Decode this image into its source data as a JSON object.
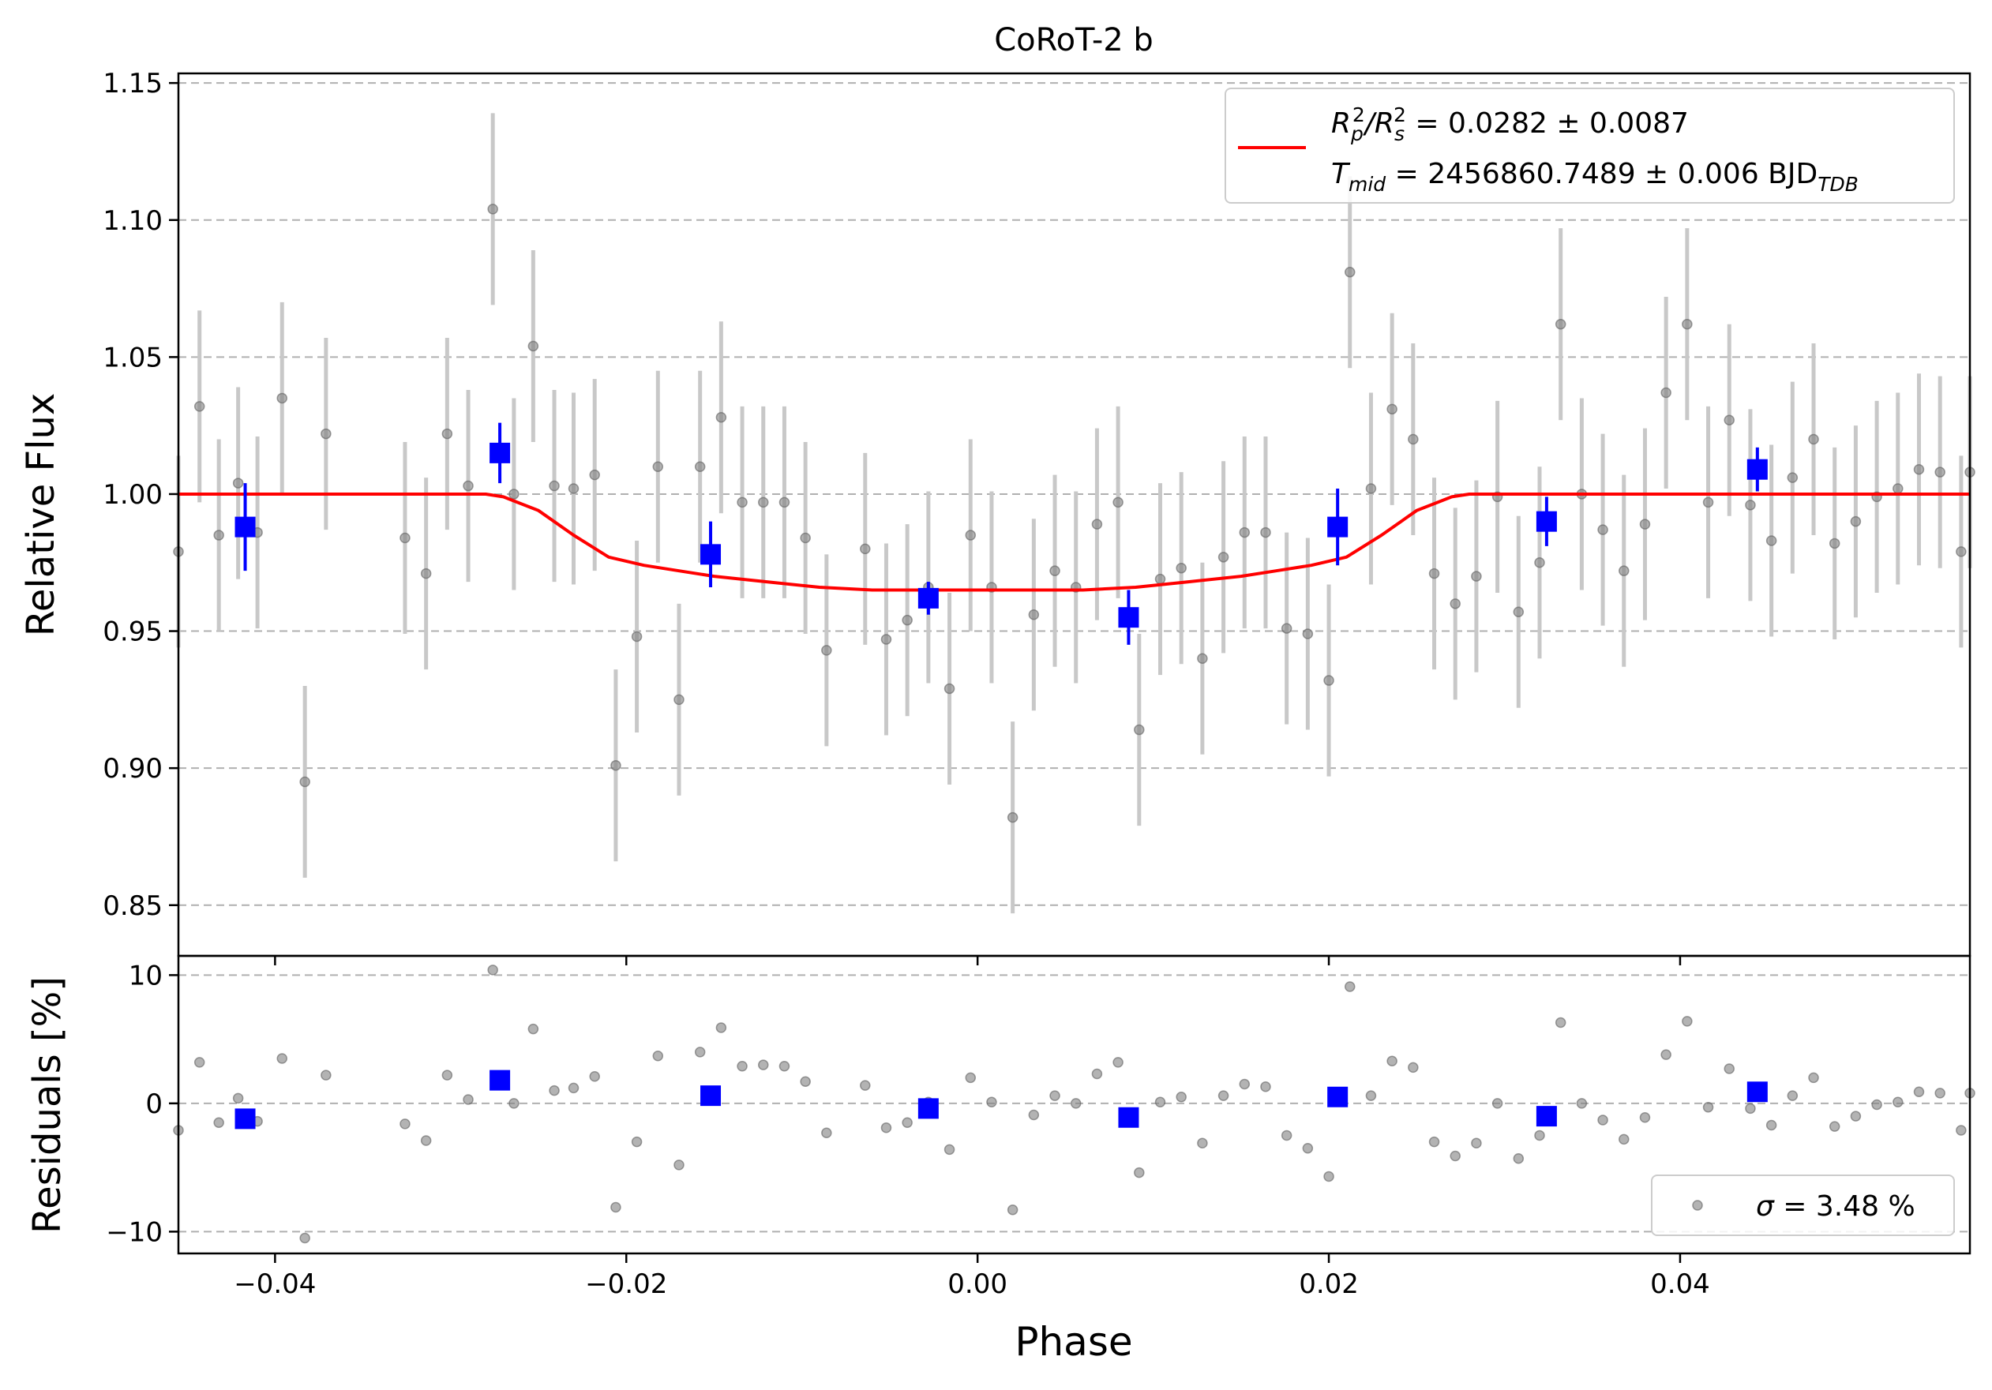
{
  "chart_data": [
    {
      "type": "scatter",
      "title": "CoRoT-2 b",
      "xlabel": "Phase",
      "ylabel": "Relative Flux",
      "xlim": [
        -0.0455,
        0.0565
      ],
      "ylim": [
        0.8315,
        1.1535
      ],
      "grid": "y-dashed",
      "x_ticks": [
        -0.04,
        -0.02,
        0.0,
        0.02,
        0.04
      ],
      "x_tick_labels": [
        "−0.04",
        "−0.02",
        "0.00",
        "0.02",
        "0.04"
      ],
      "y_ticks": [
        0.85,
        0.9,
        0.95,
        1.0,
        1.05,
        1.1,
        1.15
      ],
      "y_tick_labels": [
        "0.85",
        "0.90",
        "0.95",
        "1.00",
        "1.05",
        "1.10",
        "1.15"
      ],
      "legend": {
        "placement": "top-right",
        "line1_main": "R",
        "line1_sub_p": "p",
        "line1_sup_2a": "2",
        "line1_slash": "/R",
        "line1_sub_s": "s",
        "line1_sup_2b": "2",
        "line1_value": " = 0.0282 ± 0.0087",
        "line2_main": "T",
        "line2_sub": "mid",
        "line2_value": " = 2456860.7489 ± 0.006 BJD",
        "line2_unit_sub": "TDB"
      },
      "raw_points": {
        "x": [
          -0.0455,
          -0.0443,
          -0.0432,
          -0.0421,
          -0.041,
          -0.0396,
          -0.0383,
          -0.0371,
          -0.0326,
          -0.0314,
          -0.0302,
          -0.029,
          -0.0276,
          -0.0264,
          -0.0253,
          -0.0241,
          -0.023,
          -0.0218,
          -0.0206,
          -0.0194,
          -0.0182,
          -0.017,
          -0.0158,
          -0.0146,
          -0.0134,
          -0.0122,
          -0.011,
          -0.0098,
          -0.0086,
          -0.0064,
          -0.0052,
          -0.004,
          -0.0028,
          -0.0016,
          -0.0004,
          0.0008,
          0.002,
          0.0032,
          0.0044,
          0.0056,
          0.0068,
          0.008,
          0.0092,
          0.0104,
          0.0116,
          0.0128,
          0.014,
          0.0152,
          0.0164,
          0.0176,
          0.0188,
          0.02,
          0.0212,
          0.0224,
          0.0236,
          0.0248,
          0.026,
          0.0272,
          0.0284,
          0.0296,
          0.0308,
          0.032,
          0.0332,
          0.0344,
          0.0356,
          0.0368,
          0.038,
          0.0392,
          0.0404,
          0.0416,
          0.0428,
          0.044,
          0.0452,
          0.0464,
          0.0476,
          0.0488,
          0.05,
          0.0512,
          0.0524,
          0.0536,
          0.0548,
          0.056,
          0.0565
        ],
        "y": [
          0.979,
          1.032,
          0.985,
          1.004,
          0.986,
          1.035,
          0.895,
          1.022,
          0.984,
          0.971,
          1.022,
          1.003,
          1.104,
          1.0,
          1.054,
          1.003,
          1.002,
          1.007,
          0.901,
          0.948,
          1.01,
          0.925,
          1.01,
          1.028,
          0.997,
          0.997,
          0.997,
          0.984,
          0.943,
          0.98,
          0.947,
          0.954,
          0.966,
          0.929,
          0.985,
          0.966,
          0.882,
          0.956,
          0.972,
          0.966,
          0.989,
          0.997,
          0.914,
          0.969,
          0.973,
          0.94,
          0.977,
          0.986,
          0.986,
          0.951,
          0.949,
          0.932,
          1.081,
          1.002,
          1.031,
          1.02,
          0.971,
          0.96,
          0.97,
          0.999,
          0.957,
          0.975,
          1.062,
          1.0,
          0.987,
          0.972,
          0.989,
          1.037,
          1.062,
          0.997,
          1.027,
          0.996,
          0.983,
          1.006,
          1.02,
          0.982,
          0.99,
          0.999,
          1.002,
          1.009,
          1.008,
          0.979,
          1.008
        ],
        "yerr": 0.035,
        "color": "#808080"
      },
      "binned_points": {
        "x": [
          -0.0417,
          -0.0272,
          -0.0152,
          -0.0028,
          0.0086,
          0.0205,
          0.0324,
          0.0444
        ],
        "y": [
          0.988,
          1.015,
          0.978,
          0.962,
          0.955,
          0.988,
          0.99,
          1.009
        ],
        "yerr": [
          0.016,
          0.011,
          0.012,
          0.006,
          0.01,
          0.014,
          0.009,
          0.008
        ],
        "color": "#0000ff"
      },
      "model": {
        "x": [
          -0.0455,
          -0.028,
          -0.027,
          -0.025,
          -0.023,
          -0.021,
          -0.019,
          -0.017,
          -0.015,
          -0.012,
          -0.009,
          -0.006,
          -0.003,
          0.0,
          0.003,
          0.006,
          0.009,
          0.012,
          0.015,
          0.017,
          0.019,
          0.021,
          0.023,
          0.025,
          0.027,
          0.028,
          0.0565
        ],
        "y": [
          1.0,
          1.0,
          0.999,
          0.994,
          0.985,
          0.977,
          0.974,
          0.972,
          0.97,
          0.968,
          0.966,
          0.965,
          0.965,
          0.965,
          0.965,
          0.965,
          0.966,
          0.968,
          0.97,
          0.972,
          0.974,
          0.977,
          0.985,
          0.994,
          0.999,
          1.0,
          1.0
        ],
        "color": "#ff0000"
      }
    },
    {
      "type": "scatter",
      "xlabel": "Phase",
      "ylabel": "Residuals [%]",
      "xlim": [
        -0.0455,
        0.0565
      ],
      "ylim": [
        -11.7,
        11.5
      ],
      "grid": "y-dashed",
      "y_ticks": [
        -10,
        0,
        10
      ],
      "y_tick_labels": [
        "−10",
        "0",
        "10"
      ],
      "legend": {
        "placement": "bottom-right",
        "symbol": "σ",
        "value": " = 3.48 %"
      },
      "raw_points": {
        "x": [
          -0.0455,
          -0.0443,
          -0.0432,
          -0.0421,
          -0.041,
          -0.0396,
          -0.0383,
          -0.0371,
          -0.0326,
          -0.0314,
          -0.0302,
          -0.029,
          -0.0276,
          -0.0264,
          -0.0253,
          -0.0241,
          -0.023,
          -0.0218,
          -0.0206,
          -0.0194,
          -0.0182,
          -0.017,
          -0.0158,
          -0.0146,
          -0.0134,
          -0.0122,
          -0.011,
          -0.0098,
          -0.0086,
          -0.0064,
          -0.0052,
          -0.004,
          -0.0028,
          -0.0016,
          -0.0004,
          0.0008,
          0.002,
          0.0032,
          0.0044,
          0.0056,
          0.0068,
          0.008,
          0.0092,
          0.0104,
          0.0116,
          0.0128,
          0.014,
          0.0152,
          0.0164,
          0.0176,
          0.0188,
          0.02,
          0.0212,
          0.0224,
          0.0236,
          0.0248,
          0.026,
          0.0272,
          0.0284,
          0.0296,
          0.0308,
          0.032,
          0.0332,
          0.0344,
          0.0356,
          0.0368,
          0.038,
          0.0392,
          0.0404,
          0.0416,
          0.0428,
          0.044,
          0.0452,
          0.0464,
          0.0476,
          0.0488,
          0.05,
          0.0512,
          0.0524,
          0.0536,
          0.0548,
          0.056,
          0.0565
        ],
        "y": [
          -2.1,
          3.2,
          -1.5,
          0.4,
          -1.4,
          3.5,
          -10.5,
          2.2,
          -1.6,
          -2.9,
          2.2,
          0.3,
          10.4,
          0.0,
          5.8,
          1.0,
          1.2,
          2.1,
          -8.1,
          -3.0,
          3.7,
          -4.8,
          4.0,
          5.9,
          2.9,
          3.0,
          2.9,
          1.7,
          -2.3,
          1.4,
          -1.9,
          -1.5,
          0.1,
          -3.6,
          2.0,
          0.1,
          -8.3,
          -0.9,
          0.6,
          0.0,
          2.3,
          3.2,
          -5.4,
          0.1,
          0.5,
          -3.1,
          0.6,
          1.5,
          1.3,
          -2.5,
          -3.5,
          -5.7,
          9.1,
          0.6,
          3.3,
          2.8,
          -3.0,
          -4.1,
          -3.1,
          0.0,
          -4.3,
          -2.5,
          6.3,
          0.0,
          -1.3,
          -2.8,
          -1.1,
          3.8,
          6.4,
          -0.3,
          2.7,
          -0.4,
          -1.7,
          0.6,
          2.0,
          -1.8,
          -1.0,
          -0.1,
          0.1,
          0.9,
          0.8,
          -2.1,
          0.8
        ],
        "color": "#808080"
      },
      "binned_points": {
        "x": [
          -0.0417,
          -0.0272,
          -0.0152,
          -0.0028,
          0.0086,
          0.0205,
          0.0324,
          0.0444
        ],
        "y": [
          -1.2,
          1.8,
          0.6,
          -0.4,
          -1.1,
          0.5,
          -1.0,
          0.9
        ],
        "color": "#0000ff"
      }
    }
  ]
}
